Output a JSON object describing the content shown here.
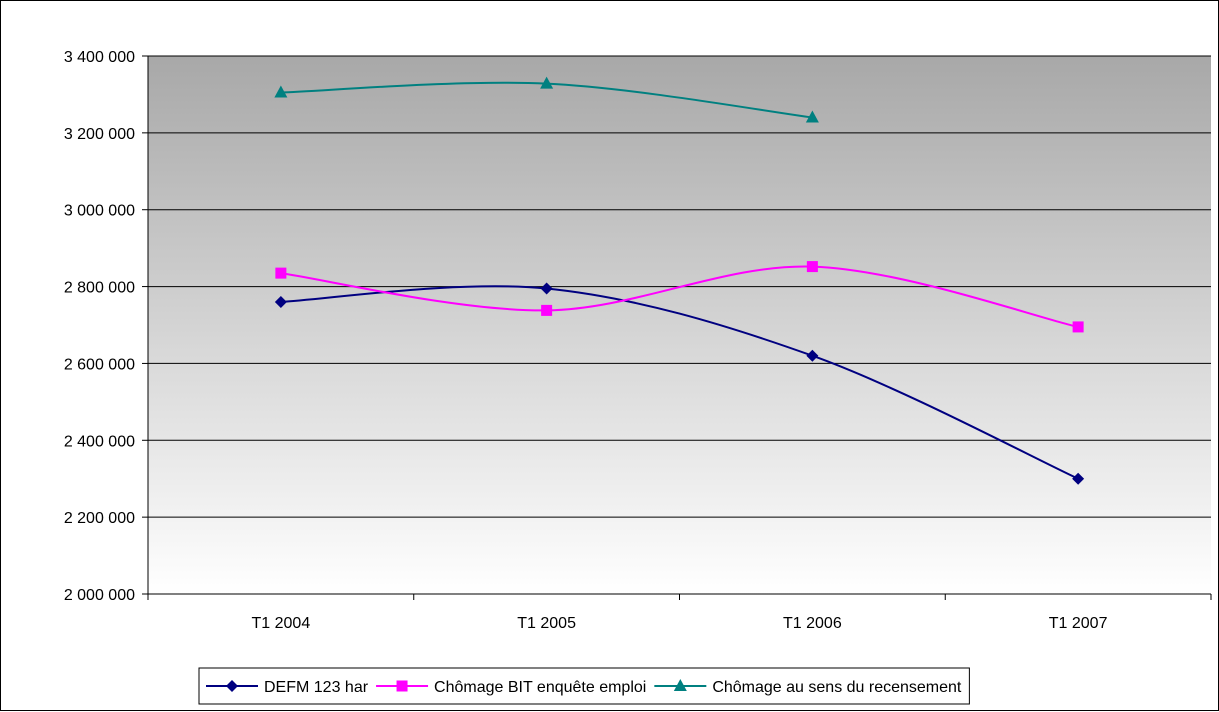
{
  "chart_data": {
    "type": "line",
    "title": "",
    "xlabel": "",
    "ylabel": "",
    "categories": [
      "T1 2004",
      "T1 2005",
      "T1 2006",
      "T1 2007"
    ],
    "ylim": [
      2000000,
      3400000
    ],
    "ytick_values": [
      2000000,
      2200000,
      2400000,
      2600000,
      2800000,
      3000000,
      3200000,
      3400000
    ],
    "ytick_labels": [
      "2 000 000",
      "2 200 000",
      "2 400 000",
      "2 600 000",
      "2 800 000",
      "3 000 000",
      "3 200 000",
      "3 400 000"
    ],
    "grid": true,
    "smooth": true,
    "legend_position": "bottom",
    "series": [
      {
        "name": "DEFM 123 har",
        "values": [
          2760000,
          2795000,
          2620000,
          2300000
        ],
        "color": "#000080",
        "marker": "diamond"
      },
      {
        "name": "Chômage BIT enquête emploi",
        "values": [
          2835000,
          2738000,
          2852000,
          2695000
        ],
        "color": "#ff00ff",
        "marker": "square"
      },
      {
        "name": "Chômage au sens du recensement",
        "values": [
          3305000,
          3328000,
          3240000,
          null
        ],
        "color": "#008080",
        "marker": "triangle"
      }
    ]
  }
}
